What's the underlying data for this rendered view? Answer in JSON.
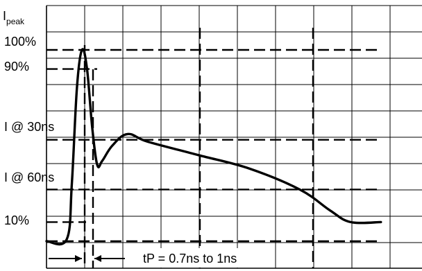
{
  "chart_data": {
    "type": "line",
    "title": "",
    "ylabel": "I",
    "ylabel_subscript": "peak",
    "xlabel": "",
    "grid": true,
    "y_axis_labels": [
      {
        "text": "100%",
        "value": 100
      },
      {
        "text": "90%",
        "value": 90
      },
      {
        "text": "I @ 30ns",
        "value": 53
      },
      {
        "text": "I @ 60ns",
        "value": 27
      },
      {
        "text": "10%",
        "value": 10
      }
    ],
    "annotation": "tP = 0.7ns to 1ns",
    "series": [
      {
        "values": [
          [
            0,
            0
          ],
          [
            4,
            1
          ],
          [
            5,
            30
          ],
          [
            6,
            80
          ],
          [
            7,
            100
          ],
          [
            8,
            90
          ],
          [
            9,
            60
          ],
          [
            10,
            40
          ],
          [
            11,
            42
          ],
          [
            13,
            50
          ],
          [
            16,
            56
          ],
          [
            20,
            52
          ],
          [
            30,
            45
          ],
          [
            40,
            38
          ],
          [
            50,
            27
          ],
          [
            56,
            16
          ],
          [
            60,
            10
          ],
          [
            66,
            10
          ]
        ]
      }
    ]
  }
}
